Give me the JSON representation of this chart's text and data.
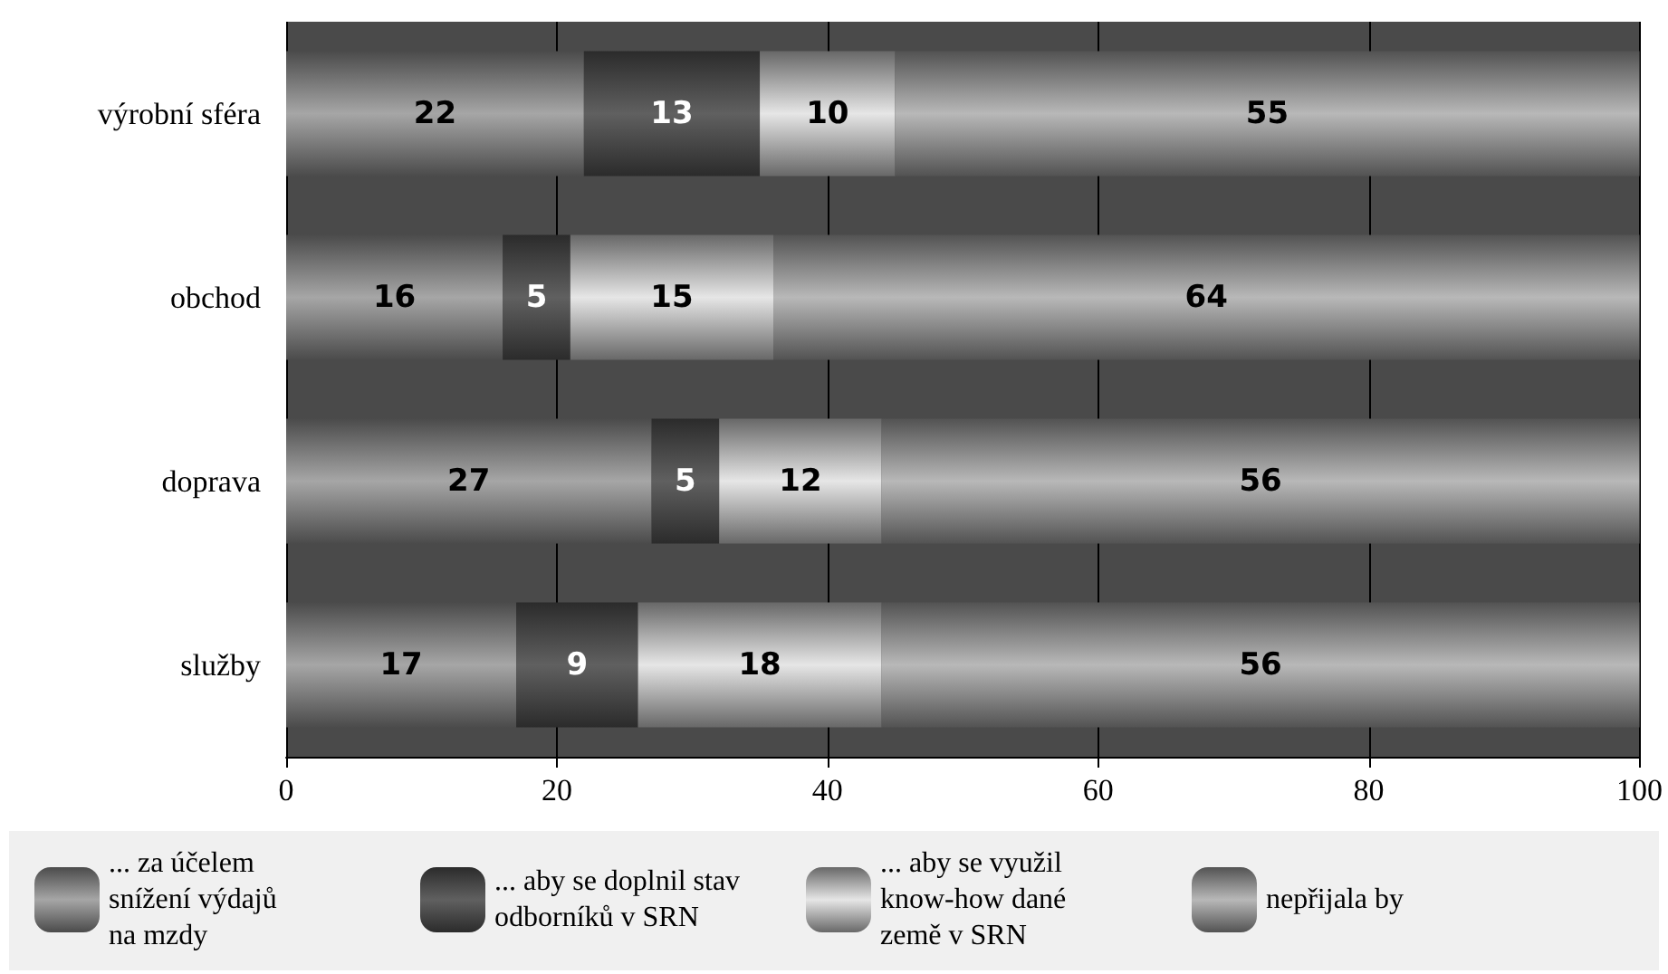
{
  "chart_data": {
    "type": "bar",
    "orientation": "horizontal",
    "stacked": true,
    "data_labels": true,
    "grid": "x",
    "legend": "bottom",
    "categories": [
      "výrobní sféra",
      "obchod",
      "doprava",
      "služby"
    ],
    "xlim": [
      0,
      100
    ],
    "xticks": [
      0,
      20,
      40,
      60,
      80,
      100
    ],
    "series": [
      {
        "name": "... za účelem snížení výdajů na mzdy",
        "color": "#a6a6a6",
        "values": [
          22,
          16,
          27,
          17
        ]
      },
      {
        "name": "... aby se doplnil stav odborníků v SRN",
        "color": "#606060",
        "values": [
          13,
          5,
          5,
          9
        ]
      },
      {
        "name": "... aby se využil know-how dané země v SRN",
        "color": "#e6e6e6",
        "values": [
          10,
          15,
          12,
          18
        ]
      },
      {
        "name": "nepřijala by",
        "color": "#b8b8b8",
        "values": [
          55,
          64,
          56,
          56
        ]
      }
    ]
  }
}
